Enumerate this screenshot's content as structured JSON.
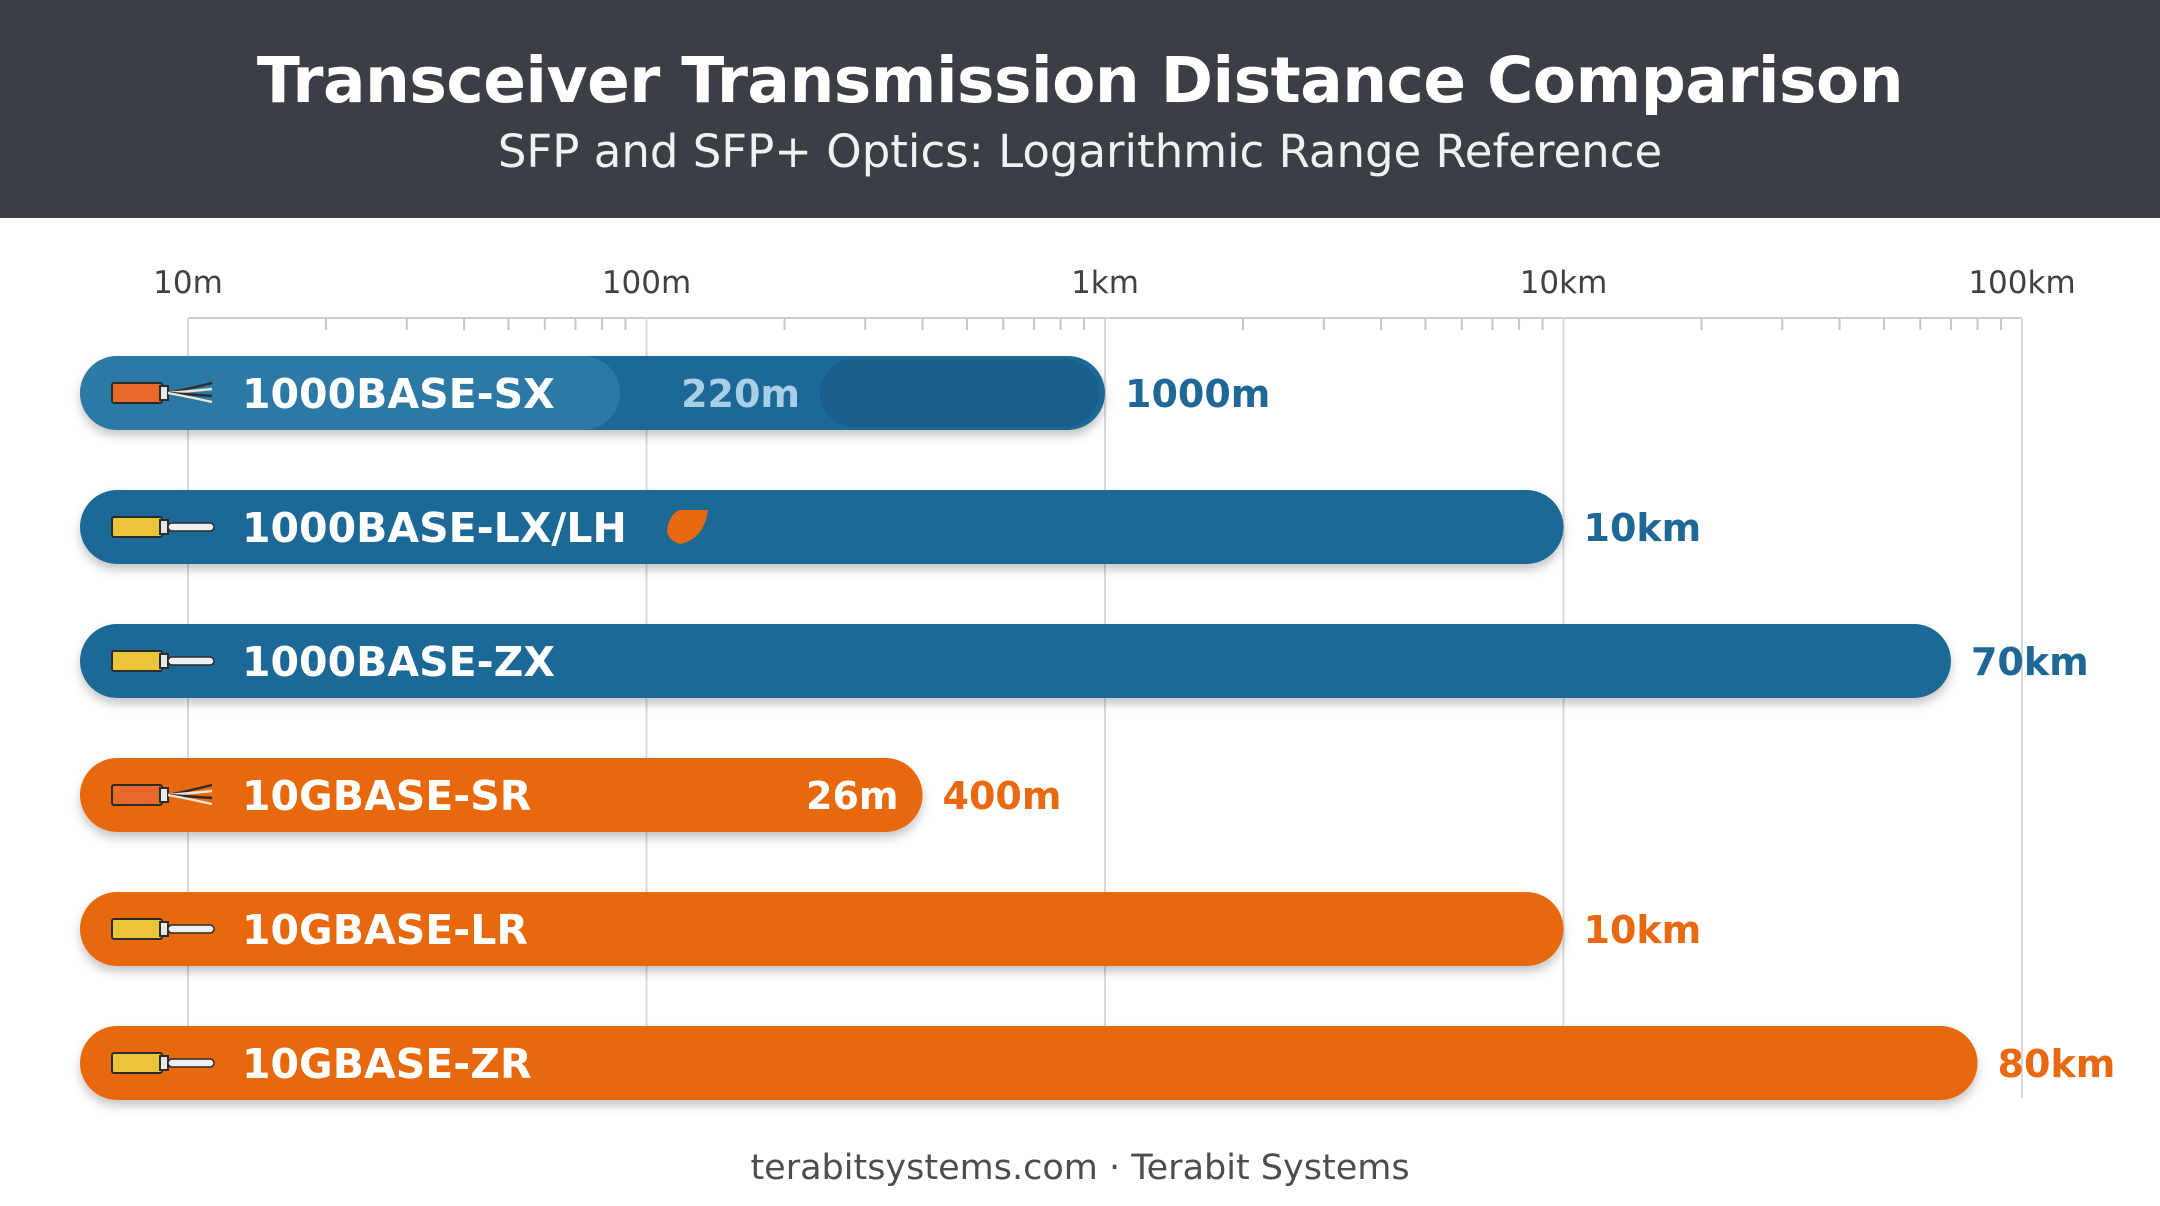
{
  "header": {
    "title": "Transceiver Transmission Distance Comparison",
    "subtitle": "SFP and SFP+ Optics: Logarithmic Range Reference"
  },
  "footer": {
    "text": "terabitsystems.com · Terabit Systems"
  },
  "colors": {
    "header_bg": "#3b3f45",
    "gigabit_blue": "#1f6896",
    "ten_gig_orange": "#e8690f",
    "multimode_connector": "#e86a2b",
    "singlemode_connector": "#eac43a"
  },
  "chart_data": {
    "type": "bar",
    "orientation": "horizontal",
    "scale": "log",
    "unit": "m",
    "xlim": [
      10,
      100000
    ],
    "ticks": [
      {
        "value": 10,
        "label": "10m"
      },
      {
        "value": 100,
        "label": "100m"
      },
      {
        "value": 1000,
        "label": "1km"
      },
      {
        "value": 10000,
        "label": "10km"
      },
      {
        "value": 100000,
        "label": "100km"
      }
    ],
    "grid": true,
    "legend": "none",
    "bars": [
      {
        "name": "1000BASE-SX",
        "value": 1000,
        "value_label": "1000m",
        "inner_value": 220,
        "inner_label": "220m",
        "family": "1G",
        "fiber": "multimode"
      },
      {
        "name": "1000BASE-LX/LH",
        "value": 10000,
        "value_label": "10km",
        "family": "1G",
        "fiber": "singlemode"
      },
      {
        "name": "1000BASE-ZX",
        "value": 70000,
        "value_label": "70km",
        "family": "1G",
        "fiber": "singlemode"
      },
      {
        "name": "10GBASE-SR",
        "value": 400,
        "value_label": "400m",
        "inner_value": 26,
        "inner_label": "26m",
        "family": "10G",
        "fiber": "multimode"
      },
      {
        "name": "10GBASE-LR",
        "value": 10000,
        "value_label": "10km",
        "family": "10G",
        "fiber": "singlemode"
      },
      {
        "name": "10GBASE-ZR",
        "value": 80000,
        "value_label": "80km",
        "family": "10G",
        "fiber": "singlemode"
      }
    ]
  }
}
